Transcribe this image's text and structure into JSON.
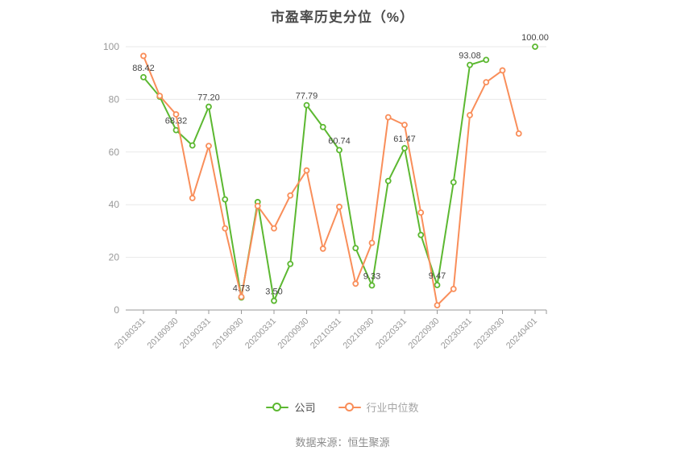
{
  "chart": {
    "title": "市盈率历史分位（%）"
  },
  "footer": {
    "source": "数据来源：恒生聚源"
  },
  "chart_data": {
    "type": "line",
    "title": "市盈率历史分位（%）",
    "categories": [
      "20180331",
      "20180630",
      "20180930",
      "20181231",
      "20190331",
      "20190630",
      "20190930",
      "20191231",
      "20200331",
      "20200630",
      "20200930",
      "20201231",
      "20210331",
      "20210630",
      "20210930",
      "20211231",
      "20220331",
      "20220630",
      "20220930",
      "20221231",
      "20230331",
      "20230630",
      "20230930",
      "20231231",
      "20240401"
    ],
    "x_label_interval": 2,
    "x_tick_labels": [
      "20180331",
      "20180930",
      "20190331",
      "20190930",
      "20200331",
      "20200930",
      "20210331",
      "20210930",
      "20220331",
      "20220930",
      "20230331",
      "20230930",
      "20240401"
    ],
    "y_ticks": [
      0,
      20,
      40,
      60,
      80,
      100
    ],
    "ylim": [
      0,
      100
    ],
    "xlabel": "",
    "ylabel": "",
    "grid": "horizontal",
    "legend_position": "bottom",
    "series": [
      {
        "name": "公司",
        "slug": "company",
        "color": "#5cb831",
        "values": [
          88.42,
          81,
          68.32,
          62.5,
          77.2,
          42,
          4.73,
          41,
          3.5,
          17.5,
          77.79,
          69.5,
          60.74,
          23.5,
          9.33,
          49,
          61.47,
          28.5,
          9.47,
          48.5,
          93.08,
          95,
          null,
          null,
          100
        ],
        "point_labels": {
          "0": "88.42",
          "2": "68.32",
          "4": "77.20",
          "6": "4.73",
          "8": "3.50",
          "10": "77.79",
          "12": "60.74",
          "14": "9.33",
          "16": "61.47",
          "18": "9.47",
          "20": "93.08",
          "24": "100.00"
        }
      },
      {
        "name": "行业中位数",
        "slug": "industry-median",
        "color": "#f98e5a",
        "values": [
          96.5,
          81.3,
          74.3,
          42.5,
          62.3,
          31,
          5,
          39.5,
          31,
          43.5,
          53,
          23.3,
          39.2,
          10,
          25.5,
          73.2,
          70.3,
          37,
          1.8,
          8,
          74,
          86.5,
          91,
          67,
          null
        ],
        "point_labels": {}
      }
    ]
  }
}
